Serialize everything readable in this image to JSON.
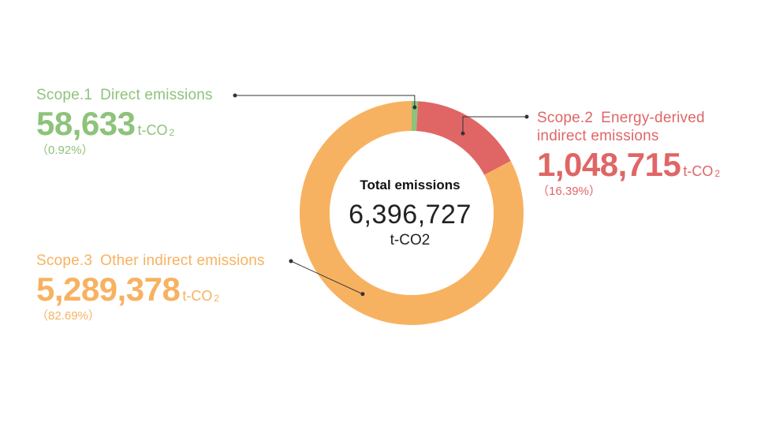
{
  "colors": {
    "scope1": "#8dc37a",
    "scope2": "#e06666",
    "scope3": "#f7b261",
    "leader": "#333333"
  },
  "chart_data": {
    "type": "pie",
    "subtype": "donut",
    "title": "",
    "center": {
      "title": "Total emissions",
      "value": "6,396,727",
      "unit": "t-CO2"
    },
    "categories": [
      "Scope.1 Direct emissions",
      "Scope.2 Energy-derived indirect emissions",
      "Scope.3 Other indirect emissions"
    ],
    "values": [
      58633,
      1048715,
      5289378
    ],
    "percentages": [
      0.92,
      16.39,
      82.69
    ],
    "labels": [
      {
        "key": "scope1",
        "scope": "Scope.1",
        "name": "Direct emissions",
        "value": "58,633",
        "unit": "t-CO",
        "unit_sub": "2",
        "percent": "（0.92%）"
      },
      {
        "key": "scope2",
        "scope": "Scope.2",
        "name_line1": "Energy-derived",
        "name_line2": "indirect emissions",
        "value": "1,048,715",
        "unit": "t-CO",
        "unit_sub": "2",
        "percent": "（16.39%）"
      },
      {
        "key": "scope3",
        "scope": "Scope.3",
        "name": "Other indirect emissions",
        "value": "5,289,378",
        "unit": "t-CO",
        "unit_sub": "2",
        "percent": "（82.69%）"
      }
    ]
  }
}
